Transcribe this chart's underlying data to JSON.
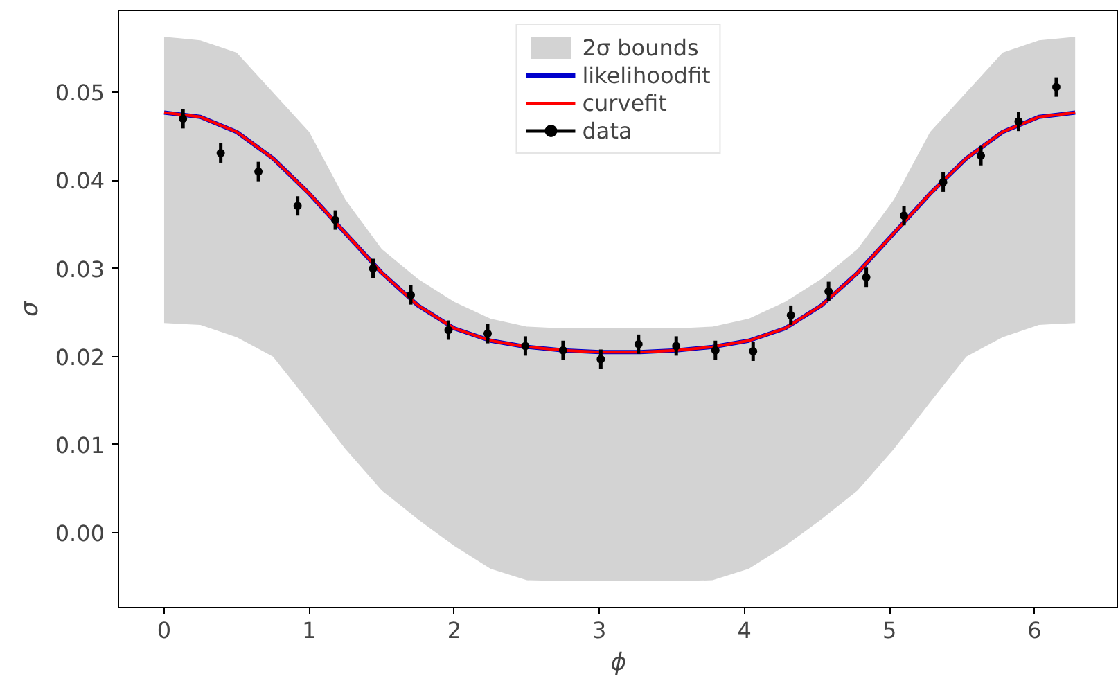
{
  "chart_data": {
    "type": "line",
    "xlabel": "ϕ",
    "ylabel": "σ",
    "xlim": [
      -0.315,
      6.58
    ],
    "ylim": [
      -0.0085,
      0.0593
    ],
    "xticks": [
      0,
      1,
      2,
      3,
      4,
      5,
      6
    ],
    "yticks": [
      {
        "value": 0.0,
        "label": "0.00"
      },
      {
        "value": 0.01,
        "label": "0.01"
      },
      {
        "value": 0.02,
        "label": "0.02"
      },
      {
        "value": 0.03,
        "label": "0.03"
      },
      {
        "value": 0.04,
        "label": "0.04"
      },
      {
        "value": 0.05,
        "label": "0.05"
      }
    ],
    "grid": false,
    "legend": "top",
    "series": [
      {
        "name": "2σ bounds",
        "type": "area",
        "color": "#d3d3d3"
      },
      {
        "name": "likelihoodfit",
        "color": "#0000cc",
        "x": [
          0,
          0.25,
          0.5,
          0.75,
          1.0,
          1.25,
          1.5,
          1.75,
          2.0,
          2.25,
          2.5,
          2.75,
          3.0,
          3.14,
          3.28,
          3.53,
          3.78,
          4.03,
          4.28,
          4.53,
          4.78,
          5.03,
          5.28,
          5.53,
          5.78,
          6.03,
          6.28
        ],
        "values": [
          0.0477,
          0.0472,
          0.0455,
          0.0425,
          0.0385,
          0.034,
          0.0295,
          0.0258,
          0.0232,
          0.0218,
          0.0211,
          0.0207,
          0.0205,
          0.0205,
          0.0205,
          0.0207,
          0.0211,
          0.0218,
          0.0232,
          0.0258,
          0.0295,
          0.034,
          0.0385,
          0.0425,
          0.0455,
          0.0472,
          0.0477
        ],
        "lower": [
          0.0238,
          0.0236,
          0.0222,
          0.02,
          0.0148,
          0.0095,
          0.0048,
          0.0015,
          -0.0015,
          -0.0041,
          -0.0054,
          -0.0055,
          -0.0055,
          -0.0055,
          -0.0055,
          -0.0055,
          -0.0054,
          -0.0041,
          -0.0015,
          0.0015,
          0.0048,
          0.0095,
          0.0148,
          0.02,
          0.0222,
          0.0236,
          0.0238
        ],
        "upper": [
          0.0563,
          0.0559,
          0.0545,
          0.05,
          0.0455,
          0.0378,
          0.0322,
          0.0288,
          0.0262,
          0.0243,
          0.0234,
          0.0232,
          0.0232,
          0.0232,
          0.0232,
          0.0232,
          0.0234,
          0.0243,
          0.0262,
          0.0288,
          0.0322,
          0.0378,
          0.0455,
          0.05,
          0.0545,
          0.0559,
          0.0563
        ]
      },
      {
        "name": "curvefit",
        "color": "#ff0000",
        "x": [
          0,
          0.25,
          0.5,
          0.75,
          1.0,
          1.25,
          1.5,
          1.75,
          2.0,
          2.25,
          2.5,
          2.75,
          3.0,
          3.14,
          3.28,
          3.53,
          3.78,
          4.03,
          4.28,
          4.53,
          4.78,
          5.03,
          5.28,
          5.53,
          5.78,
          6.03,
          6.28
        ],
        "values": [
          0.0477,
          0.0472,
          0.0455,
          0.0425,
          0.0385,
          0.034,
          0.0295,
          0.0258,
          0.0232,
          0.0218,
          0.0211,
          0.0207,
          0.0205,
          0.0205,
          0.0205,
          0.0207,
          0.0211,
          0.0218,
          0.0232,
          0.0258,
          0.0295,
          0.034,
          0.0385,
          0.0425,
          0.0455,
          0.0472,
          0.0477
        ]
      },
      {
        "name": "data",
        "type": "scatter",
        "color": "#000000",
        "marker": "circle",
        "x": [
          0.13,
          0.39,
          0.65,
          0.92,
          1.18,
          1.44,
          1.7,
          1.96,
          2.23,
          2.49,
          2.75,
          3.01,
          3.27,
          3.53,
          3.8,
          4.06,
          4.32,
          4.58,
          4.84,
          5.1,
          5.37,
          5.63,
          5.89,
          6.15
        ],
        "values": [
          0.047,
          0.0431,
          0.041,
          0.0371,
          0.0355,
          0.03,
          0.027,
          0.023,
          0.0226,
          0.0212,
          0.0207,
          0.0197,
          0.0214,
          0.0212,
          0.0207,
          0.0206,
          0.0247,
          0.0274,
          0.029,
          0.036,
          0.0398,
          0.0428,
          0.0467,
          0.0506
        ],
        "errors": [
          0.0011,
          0.0011,
          0.0011,
          0.0011,
          0.0011,
          0.0011,
          0.0011,
          0.0011,
          0.0011,
          0.0011,
          0.0011,
          0.0011,
          0.0011,
          0.0011,
          0.0011,
          0.0011,
          0.0011,
          0.0011,
          0.0011,
          0.0011,
          0.0011,
          0.0011,
          0.0011,
          0.0011
        ]
      }
    ]
  }
}
